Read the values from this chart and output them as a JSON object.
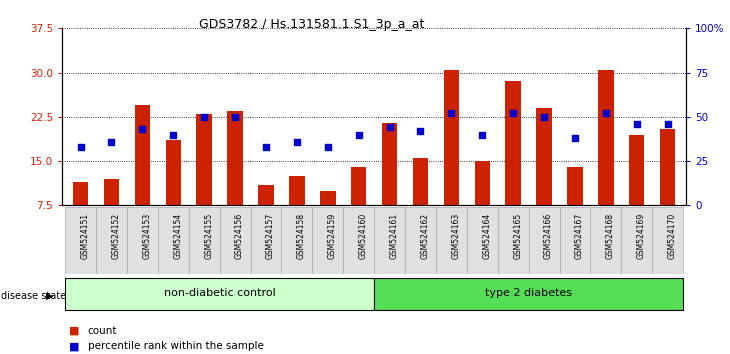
{
  "title": "GDS3782 / Hs.131581.1.S1_3p_a_at",
  "samples": [
    "GSM524151",
    "GSM524152",
    "GSM524153",
    "GSM524154",
    "GSM524155",
    "GSM524156",
    "GSM524157",
    "GSM524158",
    "GSM524159",
    "GSM524160",
    "GSM524161",
    "GSM524162",
    "GSM524163",
    "GSM524164",
    "GSM524165",
    "GSM524166",
    "GSM524167",
    "GSM524168",
    "GSM524169",
    "GSM524170"
  ],
  "counts": [
    11.5,
    12.0,
    24.5,
    18.5,
    23.0,
    23.5,
    11.0,
    12.5,
    10.0,
    14.0,
    21.5,
    15.5,
    30.5,
    15.0,
    28.5,
    24.0,
    14.0,
    30.5,
    19.5,
    20.5
  ],
  "percentiles": [
    33,
    36,
    43,
    40,
    50,
    50,
    33,
    36,
    33,
    40,
    44,
    42,
    52,
    40,
    52,
    50,
    38,
    52,
    46,
    46
  ],
  "non_diabetic_count": 10,
  "ylim_left": [
    7.5,
    37.5
  ],
  "ylim_right": [
    0,
    100
  ],
  "yticks_left": [
    7.5,
    15.0,
    22.5,
    30.0,
    37.5
  ],
  "yticks_right": [
    0,
    25,
    50,
    75,
    100
  ],
  "bar_color": "#cc2200",
  "dot_color": "#0000cc",
  "non_diabetic_color": "#ccffcc",
  "diabetic_color": "#55dd55",
  "group_label_non": "non-diabetic control",
  "group_label_dia": "type 2 diabetes",
  "disease_state_label": "disease state",
  "legend_count": "count",
  "legend_percentile": "percentile rank within the sample",
  "background_color": "#ffffff",
  "axes_bg": "#ffffff",
  "tick_bg": "#e0e0e0"
}
